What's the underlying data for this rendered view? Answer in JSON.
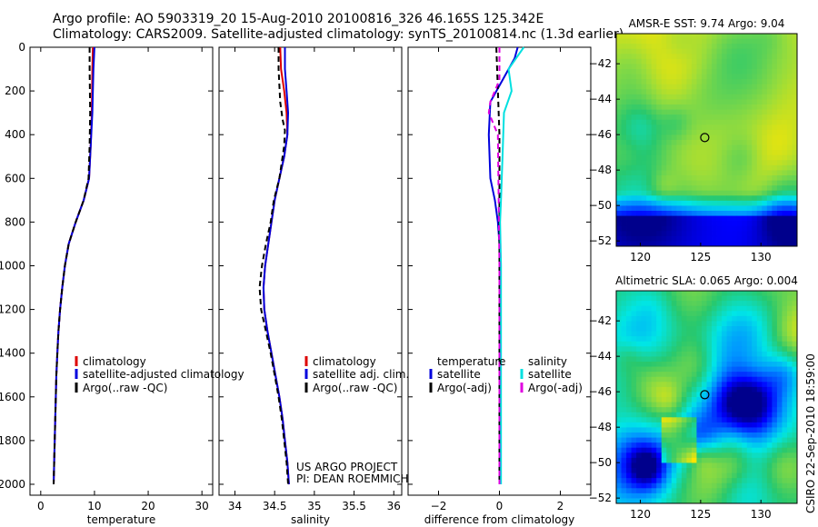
{
  "header": {
    "line1": "Argo profile: AO 5903319_20 15-Aug-2010 20100816_326 46.165S 125.342E",
    "line2": "Climatology: CARS2009. Satellite-adjusted climatology: synTS_20100814.nc (1.3d earlier)"
  },
  "stamp": "CSIRO 22-Sep-2010 18:59:00",
  "colors": {
    "red": "#dd0000",
    "blue": "#0000dd",
    "black": "#000000",
    "cyan": "#00e0e0",
    "magenta": "#e000e0"
  },
  "chart_data": [
    {
      "type": "line",
      "name": "temperature-profile",
      "xlabel": "temperature",
      "ylabel": "",
      "xlim": [
        -2,
        32
      ],
      "ylim": [
        2050,
        0
      ],
      "xticks": [
        0,
        10,
        20,
        30
      ],
      "yticks": [
        0,
        200,
        400,
        600,
        800,
        1000,
        1200,
        1400,
        1600,
        1800,
        2000
      ],
      "series": [
        {
          "name": "climatology",
          "color": "red",
          "dash": "solid",
          "points": [
            [
              9.7,
              0
            ],
            [
              9.6,
              100
            ],
            [
              9.5,
              300
            ],
            [
              9.3,
              450
            ],
            [
              9.0,
              600
            ],
            [
              8.0,
              700
            ],
            [
              6.5,
              800
            ],
            [
              5.2,
              900
            ],
            [
              4.5,
              1000
            ],
            [
              4.0,
              1100
            ],
            [
              3.6,
              1200
            ],
            [
              3.3,
              1300
            ],
            [
              3.1,
              1400
            ],
            [
              2.9,
              1500
            ],
            [
              2.8,
              1600
            ],
            [
              2.7,
              1700
            ],
            [
              2.6,
              1800
            ],
            [
              2.5,
              1900
            ],
            [
              2.4,
              2000
            ]
          ]
        },
        {
          "name": "satellite-adjusted climatology",
          "color": "blue",
          "dash": "solid",
          "points": [
            [
              10.0,
              0
            ],
            [
              9.8,
              100
            ],
            [
              9.6,
              300
            ],
            [
              9.3,
              450
            ],
            [
              9.0,
              600
            ],
            [
              8.0,
              700
            ],
            [
              6.5,
              800
            ],
            [
              5.2,
              900
            ],
            [
              4.5,
              1000
            ],
            [
              4.0,
              1100
            ],
            [
              3.6,
              1200
            ],
            [
              3.3,
              1300
            ],
            [
              3.1,
              1400
            ],
            [
              2.9,
              1500
            ],
            [
              2.8,
              1600
            ],
            [
              2.7,
              1700
            ],
            [
              2.6,
              1800
            ],
            [
              2.5,
              1900
            ],
            [
              2.4,
              2000
            ]
          ]
        },
        {
          "name": "Argo(..raw -QC)",
          "color": "black",
          "dash": "dash",
          "points": [
            [
              9.1,
              0
            ],
            [
              9.1,
              100
            ],
            [
              9.2,
              300
            ],
            [
              9.1,
              450
            ],
            [
              8.9,
              600
            ],
            [
              8.0,
              700
            ],
            [
              6.5,
              800
            ],
            [
              5.2,
              900
            ],
            [
              4.5,
              1000
            ],
            [
              4.0,
              1100
            ],
            [
              3.6,
              1200
            ],
            [
              3.3,
              1300
            ],
            [
              3.1,
              1400
            ],
            [
              2.9,
              1500
            ],
            [
              2.8,
              1600
            ],
            [
              2.7,
              1700
            ],
            [
              2.6,
              1800
            ],
            [
              2.5,
              1900
            ],
            [
              2.4,
              2000
            ]
          ]
        }
      ],
      "legend": {
        "position": "lower-left",
        "entries": [
          "climatology",
          "satellite-adjusted climatology",
          "Argo(..raw -QC)"
        ]
      }
    },
    {
      "type": "line",
      "name": "salinity-profile",
      "xlabel": "salinity",
      "ylabel": "",
      "xlim": [
        33.8,
        36.1
      ],
      "ylim": [
        2050,
        0
      ],
      "xticks": [
        34,
        34.5,
        35,
        35.5,
        36
      ],
      "yticks": [
        0,
        200,
        400,
        600,
        800,
        1000,
        1200,
        1400,
        1600,
        1800,
        2000
      ],
      "series": [
        {
          "name": "climatology",
          "color": "red",
          "dash": "solid",
          "points": [
            [
              34.57,
              0
            ],
            [
              34.58,
              100
            ],
            [
              34.62,
              200
            ],
            [
              34.65,
              300
            ],
            [
              34.66,
              400
            ],
            [
              34.62,
              500
            ],
            [
              34.56,
              600
            ],
            [
              34.5,
              700
            ],
            [
              34.46,
              800
            ],
            [
              34.42,
              900
            ],
            [
              34.38,
              1000
            ],
            [
              34.36,
              1100
            ],
            [
              34.37,
              1200
            ],
            [
              34.41,
              1300
            ],
            [
              34.46,
              1400
            ],
            [
              34.51,
              1500
            ],
            [
              34.56,
              1600
            ],
            [
              34.6,
              1700
            ],
            [
              34.63,
              1800
            ],
            [
              34.66,
              1900
            ],
            [
              34.68,
              2000
            ]
          ]
        },
        {
          "name": "satellite adj. clim.",
          "color": "blue",
          "dash": "solid",
          "points": [
            [
              34.63,
              0
            ],
            [
              34.63,
              100
            ],
            [
              34.65,
              200
            ],
            [
              34.67,
              300
            ],
            [
              34.66,
              400
            ],
            [
              34.62,
              500
            ],
            [
              34.56,
              600
            ],
            [
              34.5,
              700
            ],
            [
              34.46,
              800
            ],
            [
              34.42,
              900
            ],
            [
              34.38,
              1000
            ],
            [
              34.36,
              1100
            ],
            [
              34.37,
              1200
            ],
            [
              34.41,
              1300
            ],
            [
              34.46,
              1400
            ],
            [
              34.51,
              1500
            ],
            [
              34.56,
              1600
            ],
            [
              34.6,
              1700
            ],
            [
              34.63,
              1800
            ],
            [
              34.66,
              1900
            ],
            [
              34.68,
              2000
            ]
          ]
        },
        {
          "name": "Argo(..raw -QC)",
          "color": "black",
          "dash": "dash",
          "points": [
            [
              34.55,
              0
            ],
            [
              34.55,
              100
            ],
            [
              34.57,
              250
            ],
            [
              34.6,
              330
            ],
            [
              34.63,
              380
            ],
            [
              34.62,
              450
            ],
            [
              34.56,
              600
            ],
            [
              34.49,
              700
            ],
            [
              34.45,
              800
            ],
            [
              34.39,
              900
            ],
            [
              34.34,
              1000
            ],
            [
              34.31,
              1100
            ],
            [
              34.33,
              1200
            ],
            [
              34.39,
              1300
            ],
            [
              34.45,
              1400
            ],
            [
              34.5,
              1500
            ],
            [
              34.55,
              1600
            ],
            [
              34.59,
              1700
            ],
            [
              34.62,
              1800
            ],
            [
              34.65,
              1900
            ],
            [
              34.67,
              2000
            ]
          ]
        }
      ],
      "legend": {
        "position": "lower-right",
        "entries": [
          "climatology",
          "satellite adj. clim.",
          "Argo(..raw -QC)"
        ]
      },
      "annotation": [
        "US ARGO PROJECT",
        "PI: DEAN ROEMMICH"
      ]
    },
    {
      "type": "line",
      "name": "difference-profile",
      "xlabel": "difference from climatology",
      "ylabel": "",
      "xlim": [
        -3,
        3
      ],
      "ylim": [
        2050,
        0
      ],
      "xticks": [
        -2,
        0,
        2
      ],
      "yticks": [
        0,
        200,
        400,
        600,
        800,
        1000,
        1200,
        1400,
        1600,
        1800,
        2000
      ],
      "series": [
        {
          "name": "temperature satellite",
          "color": "blue",
          "dash": "solid",
          "points": [
            [
              0.6,
              0
            ],
            [
              0.5,
              50
            ],
            [
              0.1,
              150
            ],
            [
              -0.3,
              250
            ],
            [
              -0.35,
              400
            ],
            [
              -0.3,
              600
            ],
            [
              -0.15,
              700
            ],
            [
              -0.05,
              800
            ],
            [
              0,
              900
            ],
            [
              0,
              2000
            ]
          ]
        },
        {
          "name": "temperature Argo(-adj)",
          "color": "black",
          "dash": "dash",
          "points": [
            [
              -0.1,
              0
            ],
            [
              -0.05,
              200
            ],
            [
              0,
              400
            ],
            [
              0,
              2000
            ]
          ]
        },
        {
          "name": "salinity satellite",
          "color": "cyan",
          "dash": "solid",
          "points": [
            [
              0.8,
              0
            ],
            [
              0.3,
              100
            ],
            [
              0.4,
              200
            ],
            [
              0.15,
              300
            ],
            [
              0.1,
              500
            ],
            [
              0.05,
              700
            ],
            [
              0.02,
              800
            ],
            [
              0.05,
              1000
            ],
            [
              0.05,
              2000
            ]
          ]
        },
        {
          "name": "salinity Argo(-adj)",
          "color": "magenta",
          "dash": "dash",
          "points": [
            [
              0,
              0
            ],
            [
              0,
              150
            ],
            [
              -0.3,
              250
            ],
            [
              -0.35,
              300
            ],
            [
              -0.05,
              400
            ],
            [
              0,
              1000
            ],
            [
              0,
              2000
            ]
          ]
        }
      ],
      "legend": {
        "position": "lower-center",
        "temperature_header": "temperature",
        "salinity_header": "salinity",
        "entries": [
          "satellite",
          "Argo(-adj)",
          "satellite",
          "Argo(-adj)"
        ]
      }
    },
    {
      "type": "heatmap",
      "name": "amsr-e-sst-map",
      "title": "AMSR-E SST: 9.74 Argo: 9.04",
      "xlim": [
        118,
        133
      ],
      "ylim": [
        -52.3,
        -40.3
      ],
      "xticks": [
        120,
        125,
        130
      ],
      "yticks": [
        -42,
        -44,
        -46,
        -48,
        -50,
        -52
      ],
      "argo_position": [
        125.342,
        -46.165
      ]
    },
    {
      "type": "heatmap",
      "name": "altimetric-sla-map",
      "title": "Altimetric SLA: 0.065 Argo: 0.004",
      "xlim": [
        118,
        133
      ],
      "ylim": [
        -52.3,
        -40.3
      ],
      "xticks": [
        120,
        125,
        130
      ],
      "yticks": [
        -42,
        -44,
        -46,
        -48,
        -50,
        -52
      ],
      "argo_position": [
        125.342,
        -46.165
      ]
    }
  ]
}
